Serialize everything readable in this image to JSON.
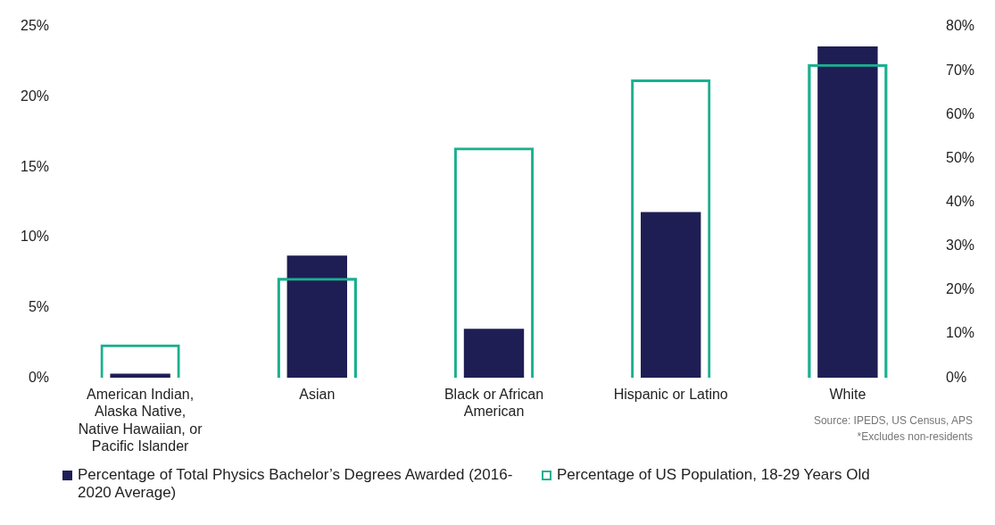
{
  "chart_data": {
    "type": "bar",
    "categories": [
      "American Indian, Alaska Native, Native Hawaiian, or Pacific Islander",
      "Asian",
      "Black or African American",
      "Hispanic or Latino",
      "White"
    ],
    "series": [
      {
        "name": "Percentage of Total Physics Bachelor’s Degrees Awarded (2016-2020 Average)",
        "color": "#1e1e55",
        "values": [
          0.3,
          8.7,
          3.5,
          11.8,
          23.6
        ]
      },
      {
        "name": "Percentage of US Population, 18-29 Years Old",
        "color": "#1bb08f",
        "values": [
          7.6,
          22.8,
          52.5,
          68,
          71.5
        ],
        "axis": "y2"
      }
    ],
    "ylim": [
      0,
      25
    ],
    "yticks": [
      {
        "value": 0,
        "label": "0%"
      },
      {
        "value": 5,
        "label": "5%"
      },
      {
        "value": 10,
        "label": "10%"
      },
      {
        "value": 15,
        "label": "15%"
      },
      {
        "value": 20,
        "label": "20%"
      },
      {
        "value": 25,
        "label": "25%"
      }
    ],
    "y2lim": [
      0,
      80
    ],
    "y2ticks": [
      {
        "value": 0,
        "label": "0%"
      },
      {
        "value": 10,
        "label": "10%"
      },
      {
        "value": 20,
        "label": "20%"
      },
      {
        "value": 30,
        "label": "30%"
      },
      {
        "value": 40,
        "label": "40%"
      },
      {
        "value": 50,
        "label": "50%"
      },
      {
        "value": 60,
        "label": "60%"
      },
      {
        "value": 70,
        "label": "70%"
      },
      {
        "value": 80,
        "label": "80%"
      }
    ],
    "grid": false,
    "legend": "bottom",
    "annotations": [
      "Source: IPEDS, US Census, APS",
      "*Excludes non-residents"
    ]
  }
}
